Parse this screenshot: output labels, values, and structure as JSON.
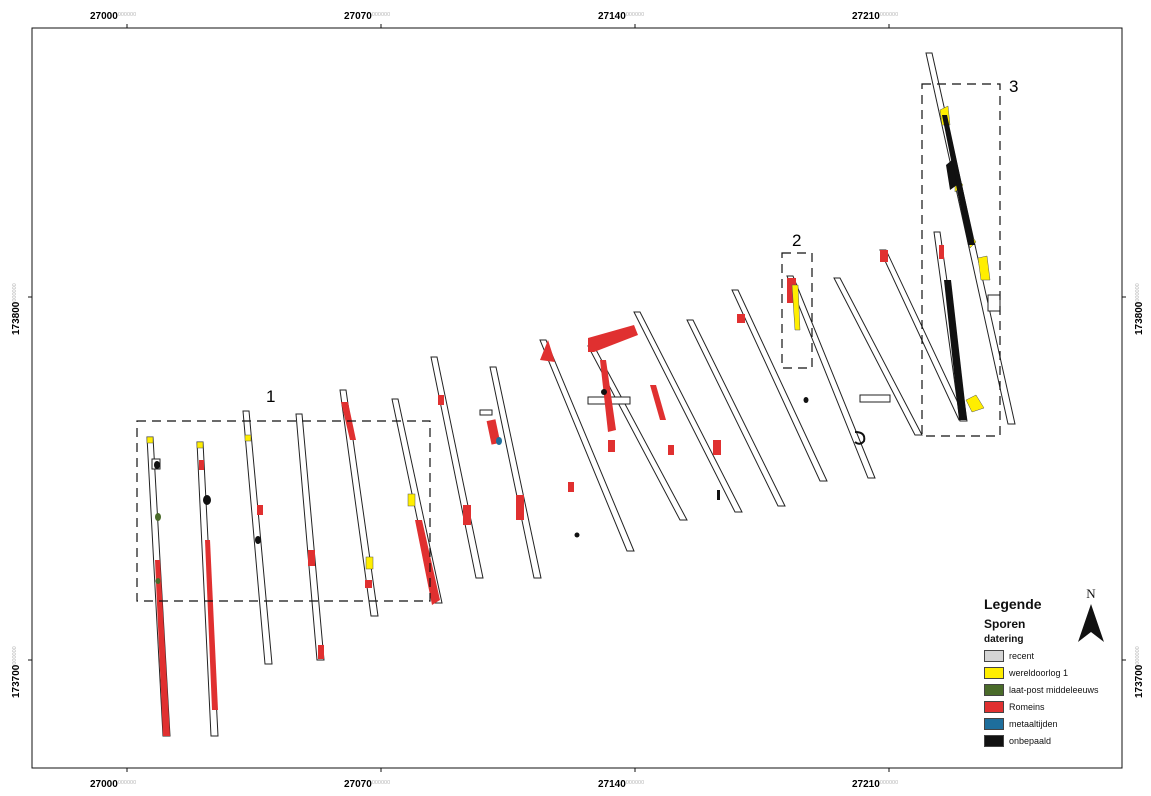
{
  "grid": {
    "top_ticks": [
      {
        "main": "27000",
        "decimals": "000000"
      },
      {
        "main": "27070",
        "decimals": "000000"
      },
      {
        "main": "27140",
        "decimals": "000000"
      },
      {
        "main": "27210",
        "decimals": "000000"
      }
    ],
    "bottom_ticks": [
      {
        "main": "27000",
        "decimals": "000000"
      },
      {
        "main": "27070",
        "decimals": "000000"
      },
      {
        "main": "27140",
        "decimals": "000000"
      },
      {
        "main": "27210",
        "decimals": "000000"
      }
    ],
    "left_ticks": [
      {
        "main": "173800",
        "decimals": "000000"
      },
      {
        "main": "173700",
        "decimals": "000000"
      }
    ],
    "right_ticks": [
      {
        "main": "173800",
        "decimals": "000000"
      },
      {
        "main": "173700",
        "decimals": "000000"
      }
    ]
  },
  "zones": [
    {
      "label": "1"
    },
    {
      "label": "2"
    },
    {
      "label": "3"
    }
  ],
  "north_arrow": {
    "label": "N"
  },
  "legend": {
    "title": "Legende",
    "subtitle": "Sporen",
    "field": "datering",
    "items": [
      {
        "label": "recent",
        "color": "#d4d4d4"
      },
      {
        "label": "wereldoorlog 1",
        "color": "#ffee00"
      },
      {
        "label": "laat-post middeleeuws",
        "color": "#4a6b2a"
      },
      {
        "label": "Romeins",
        "color": "#e03030"
      },
      {
        "label": "metaaltijden",
        "color": "#1e6e9c"
      },
      {
        "label": "onbepaald",
        "color": "#111111"
      }
    ]
  },
  "colors": {
    "frame": "#111111",
    "romeins": "#e03030",
    "wereldoorlog": "#ffee00",
    "onbepaald": "#111111",
    "metaaltijden": "#1e6e9c",
    "laat_middeleeuws": "#4a6b2a",
    "decimal_text": "#b8b8b8"
  }
}
